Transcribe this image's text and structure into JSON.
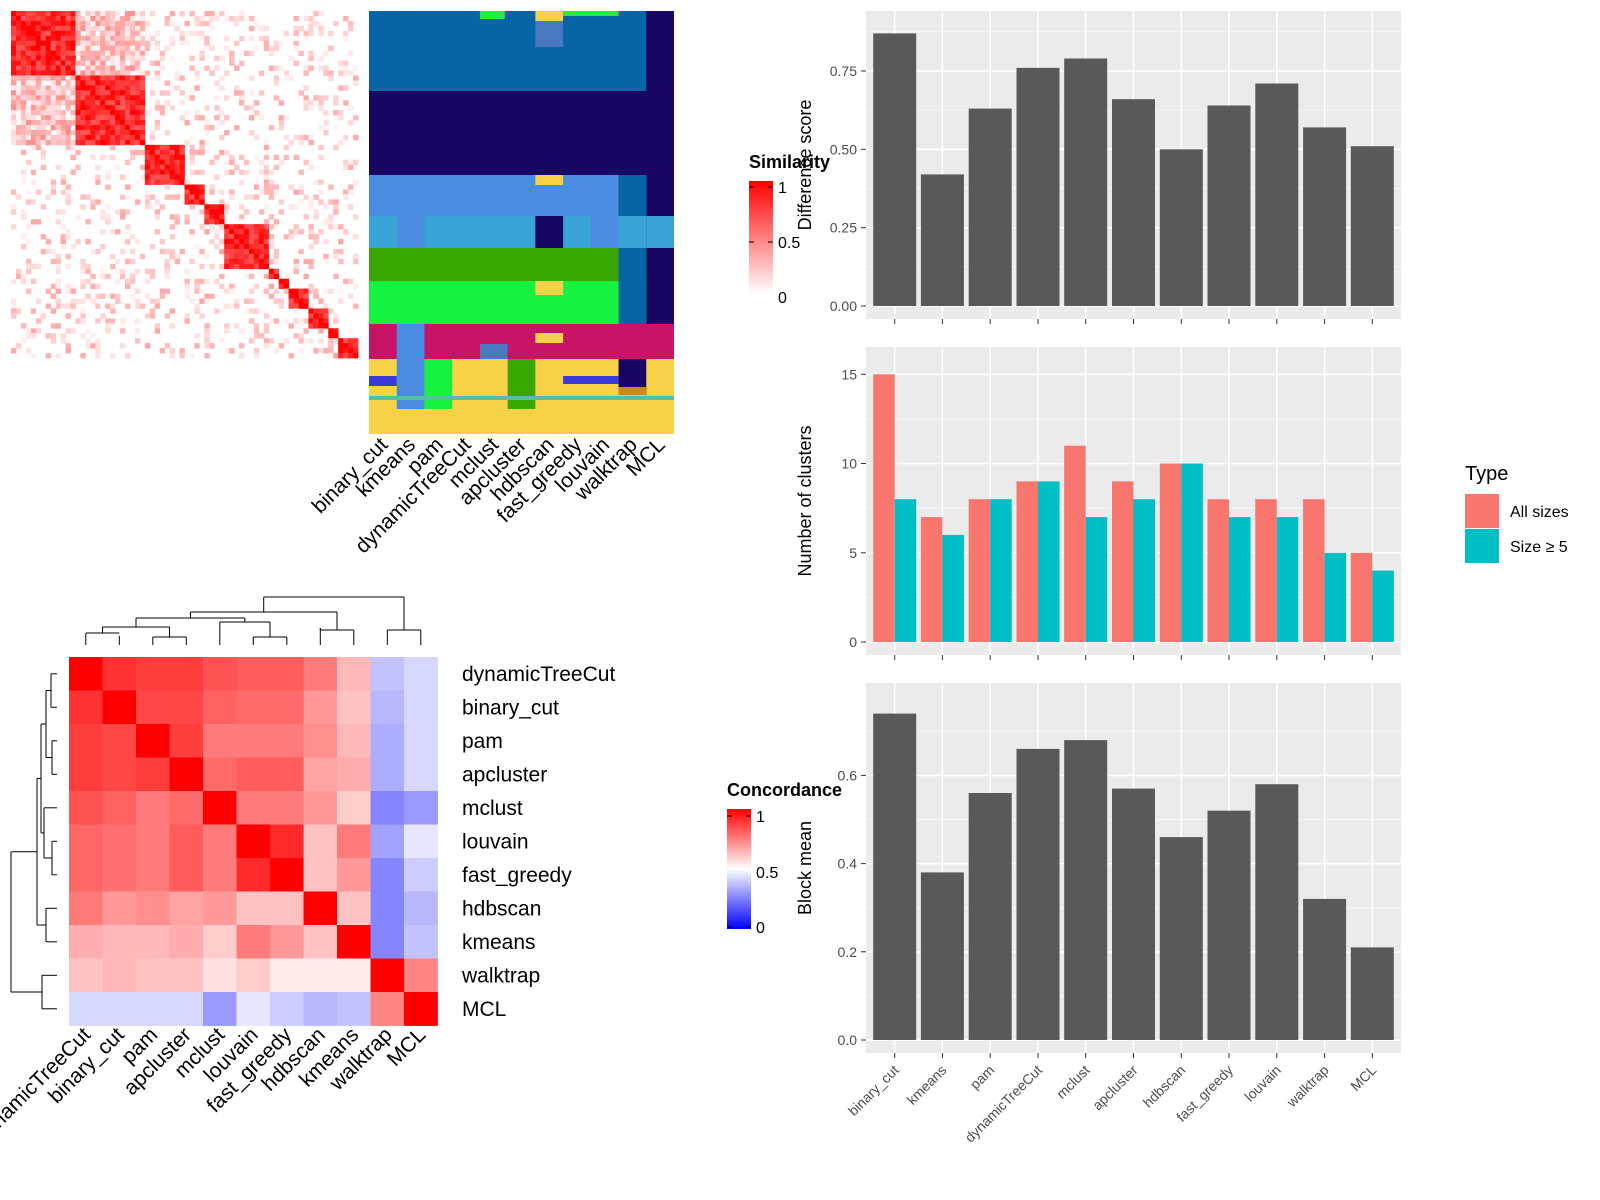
{
  "heatmap_similarity": {
    "legend_title": "Similarity",
    "legend_ticks": [
      "1",
      "0.5",
      "0"
    ],
    "colors": [
      "#ffffff",
      "#ff0000"
    ]
  },
  "cluster_assignment": {
    "methods": [
      "binary_cut",
      "kmeans",
      "pam",
      "dynamicTreeCut",
      "mclust",
      "apcluster",
      "hdbscan",
      "fast_greedy",
      "louvain",
      "walktrap",
      "MCL"
    ]
  },
  "concordance": {
    "legend_title": "Concordance",
    "legend_ticks": [
      "1",
      "0.5",
      "0"
    ],
    "colors": [
      "#0000ff",
      "#ffffff",
      "#ff0000"
    ],
    "row_labels": [
      "dynamicTreeCut",
      "binary_cut",
      "pam",
      "apcluster",
      "mclust",
      "louvain",
      "fast_greedy",
      "hdbscan",
      "kmeans",
      "walktrap",
      "MCL"
    ],
    "col_labels": [
      "dynamicTreeCut",
      "binary_cut",
      "pam",
      "apcluster",
      "mclust",
      "louvain",
      "fast_greedy",
      "hdbscan",
      "kmeans",
      "walktrap",
      "MCL"
    ]
  },
  "chart_data": [
    {
      "type": "bar",
      "ylabel": "Difference score",
      "categories": [
        "binary_cut",
        "kmeans",
        "pam",
        "dynamicTreeCut",
        "mclust",
        "apcluster",
        "hdbscan",
        "fast_greedy",
        "louvain",
        "walktrap",
        "MCL"
      ],
      "values": [
        0.87,
        0.42,
        0.63,
        0.76,
        0.79,
        0.66,
        0.5,
        0.64,
        0.71,
        0.57,
        0.51
      ],
      "ylim": [
        0,
        0.9
      ],
      "yticks": [
        "0.00",
        "0.25",
        "0.50",
        "0.75"
      ],
      "color": "#595959"
    },
    {
      "type": "bar",
      "ylabel": "Number of clusters",
      "categories": [
        "binary_cut",
        "kmeans",
        "pam",
        "dynamicTreeCut",
        "mclust",
        "apcluster",
        "hdbscan",
        "fast_greedy",
        "louvain",
        "walktrap",
        "MCL"
      ],
      "series": [
        {
          "name": "All sizes",
          "color": "#F8766D",
          "values": [
            15,
            7,
            8,
            9,
            11,
            9,
            10,
            8,
            8,
            8,
            5
          ]
        },
        {
          "name": "Size ≥ 5",
          "color": "#00BFC4",
          "values": [
            8,
            6,
            8,
            9,
            7,
            8,
            10,
            7,
            7,
            5,
            4
          ]
        }
      ],
      "ylim": [
        0,
        15.8
      ],
      "yticks": [
        "0",
        "5",
        "10",
        "15"
      ],
      "legend_title": "Type",
      "legend_position": "right"
    },
    {
      "type": "bar",
      "ylabel": "Block mean",
      "categories": [
        "binary_cut",
        "kmeans",
        "pam",
        "dynamicTreeCut",
        "mclust",
        "apcluster",
        "hdbscan",
        "fast_greedy",
        "louvain",
        "walktrap",
        "MCL"
      ],
      "values": [
        0.74,
        0.38,
        0.56,
        0.66,
        0.68,
        0.57,
        0.46,
        0.52,
        0.58,
        0.32,
        0.21
      ],
      "ylim": [
        0,
        0.78
      ],
      "yticks": [
        "0.0",
        "0.2",
        "0.4",
        "0.6"
      ],
      "color": "#595959"
    }
  ]
}
